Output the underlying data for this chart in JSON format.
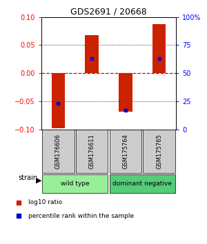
{
  "title": "GDS2691 / 20668",
  "samples": [
    "GSM176606",
    "GSM176611",
    "GSM175764",
    "GSM175765"
  ],
  "log10_ratios": [
    -0.098,
    0.068,
    -0.068,
    0.088
  ],
  "percentile_ranks": [
    23,
    63,
    17,
    63
  ],
  "ylim_left": [
    -0.1,
    0.1
  ],
  "ylim_right": [
    0,
    100
  ],
  "yticks_left": [
    -0.1,
    -0.05,
    0,
    0.05,
    0.1
  ],
  "yticks_right": [
    0,
    25,
    50,
    75,
    100
  ],
  "ytick_labels_right": [
    "0",
    "25",
    "50",
    "75",
    "100%"
  ],
  "bar_color": "#cc2200",
  "dot_color": "#0000cc",
  "zero_line_color": "#cc0000",
  "groups": [
    {
      "label": "wild type",
      "indices": [
        0,
        1
      ],
      "color": "#99ee99"
    },
    {
      "label": "dominant negative",
      "indices": [
        2,
        3
      ],
      "color": "#55cc77"
    }
  ],
  "strain_label": "strain",
  "legend_bar_label": "log10 ratio",
  "legend_dot_label": "percentile rank within the sample",
  "sample_box_color": "#cccccc",
  "background_color": "#ffffff"
}
